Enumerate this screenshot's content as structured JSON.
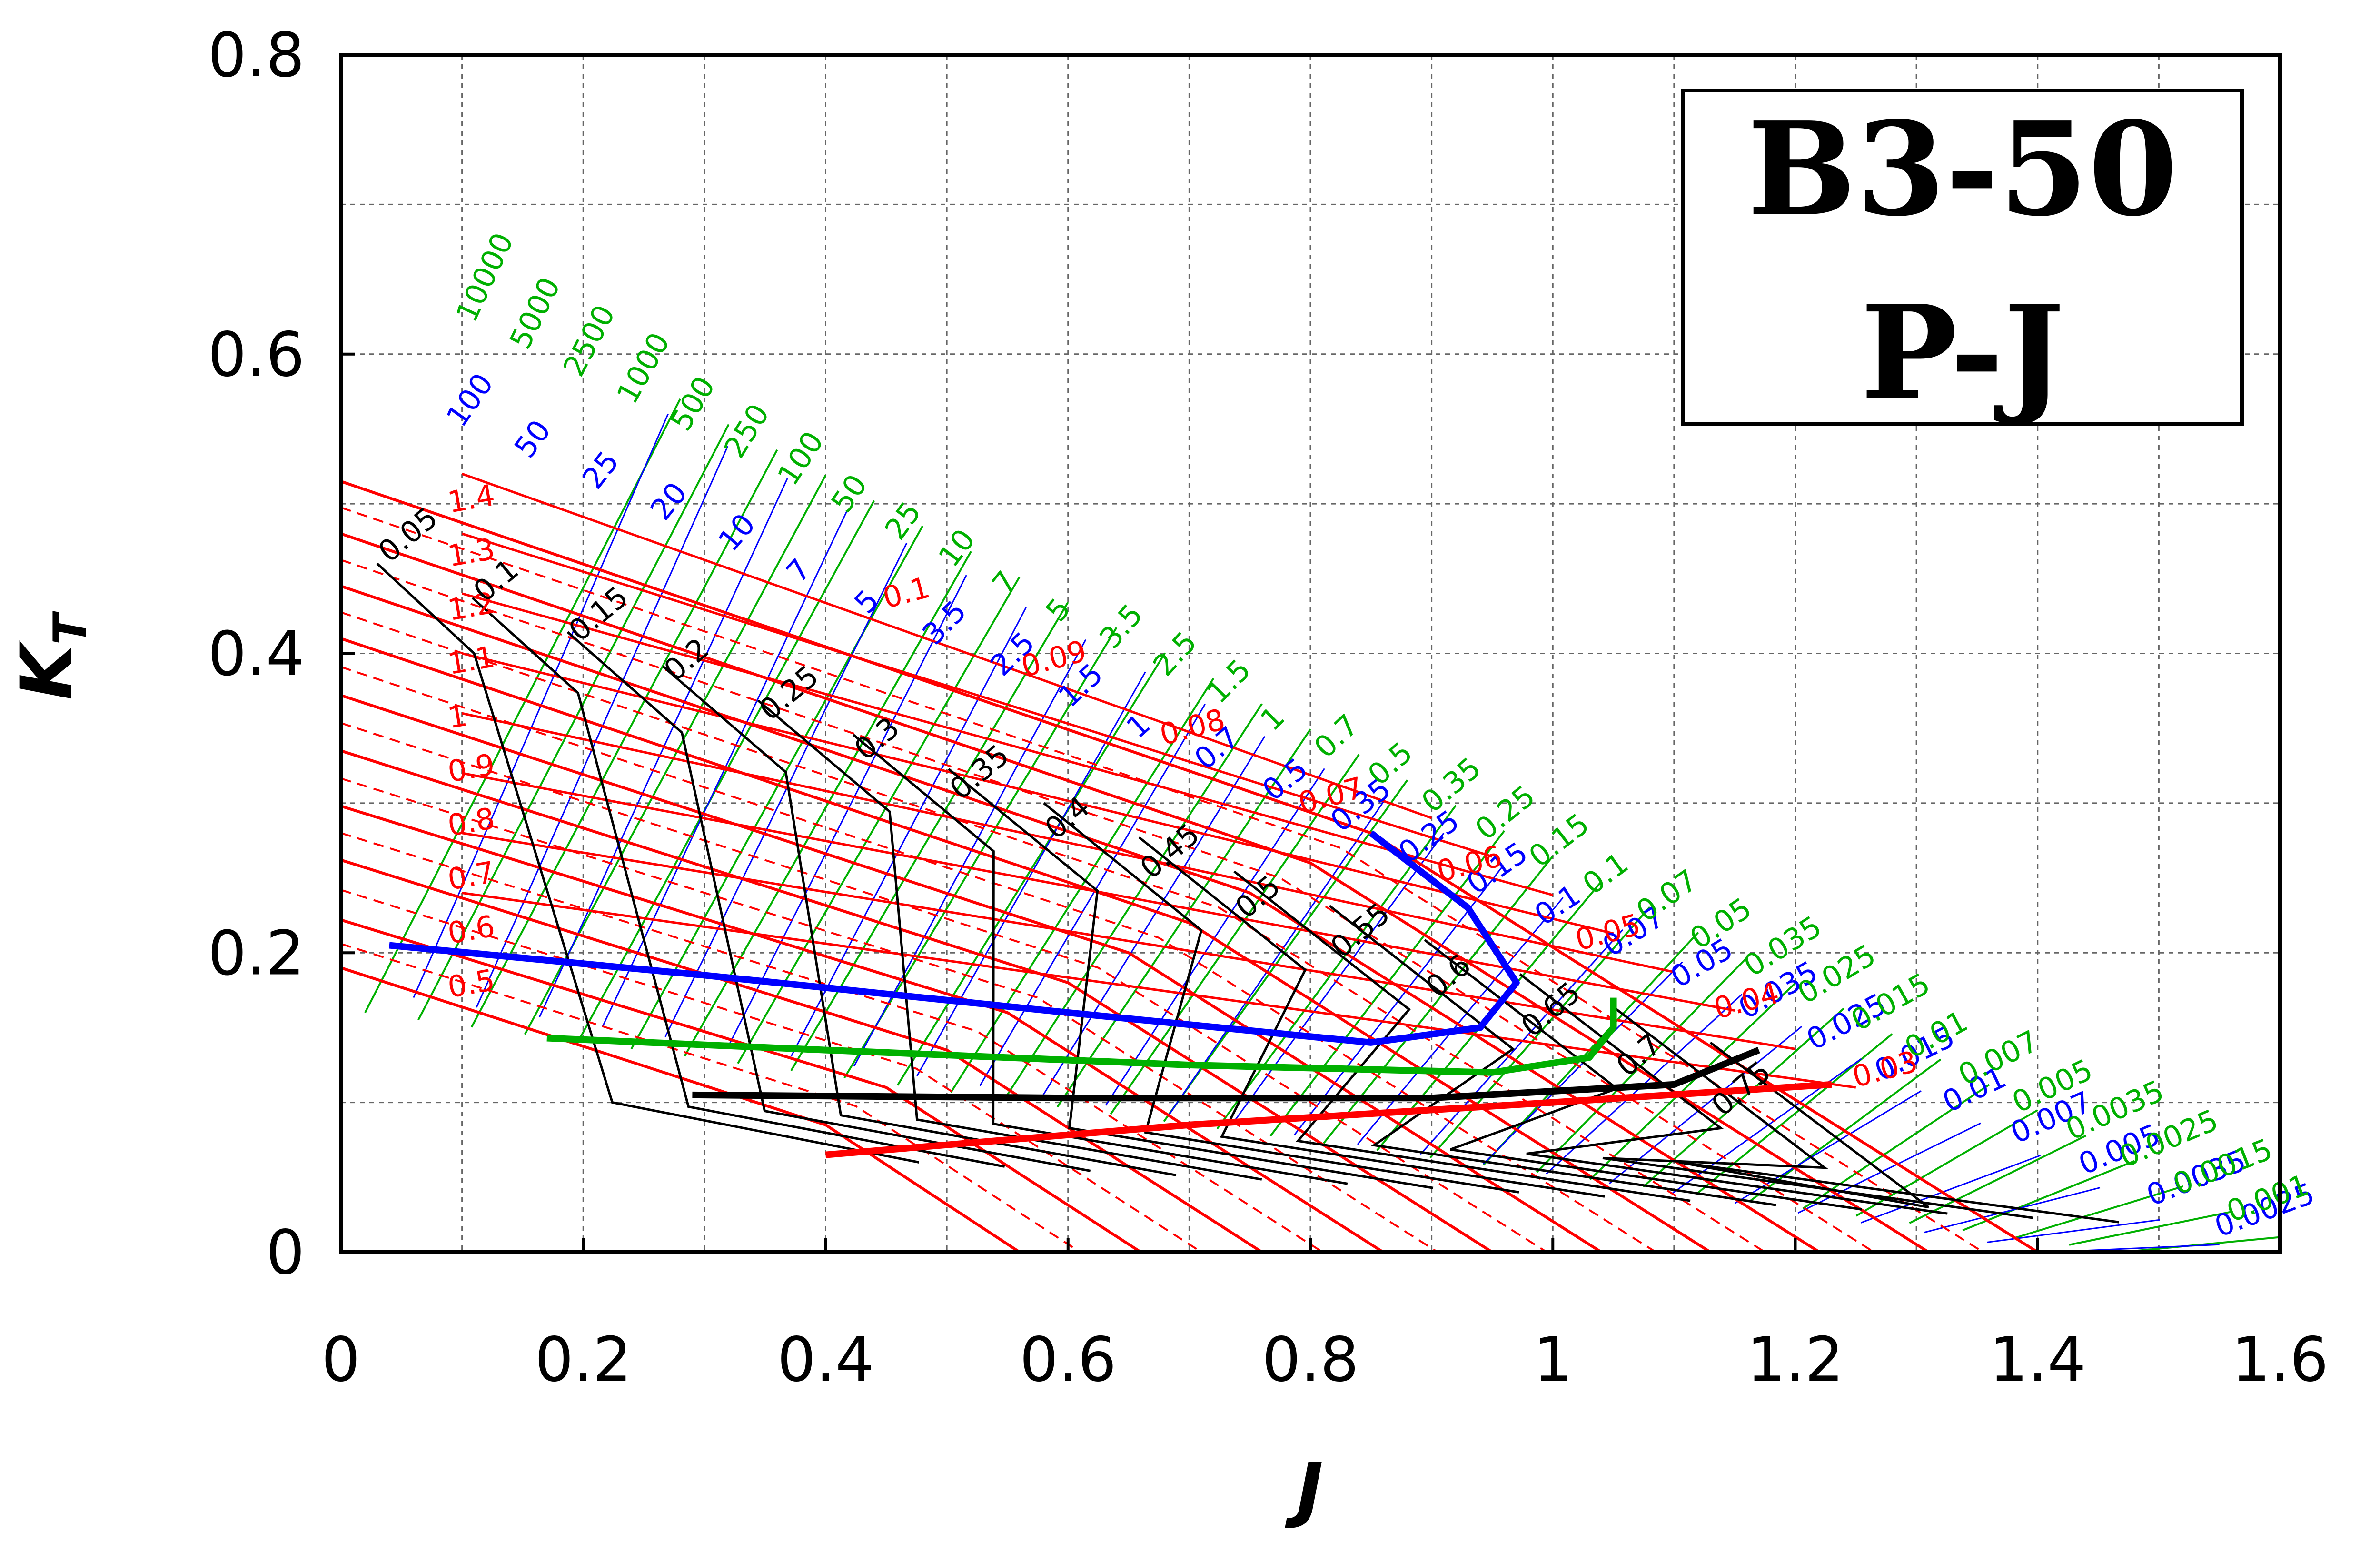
{
  "chart_data": {
    "type": "line",
    "title": "B3-50",
    "subtitle": "P-J",
    "xlabel": "J",
    "ylabel": "K_T",
    "xlim": [
      0,
      1.6
    ],
    "ylim": [
      0,
      0.8
    ],
    "grid": true,
    "x_ticks": [
      "0",
      "0.2",
      "0.4",
      "0.6",
      "0.8",
      "1",
      "1.2",
      "1.4",
      "1.6"
    ],
    "y_ticks": [
      "0",
      "0.2",
      "0.4",
      "0.6",
      "0.8"
    ],
    "colors": {
      "pitch_ratio": "#ff0000",
      "efficiency": "#000000",
      "coefficient_blue": "#0000ff",
      "coefficient_green": "#00b000",
      "grid": "#555555"
    },
    "pitch_ratio_labels": [
      "0.5",
      "0.6",
      "0.7",
      "0.8",
      "0.9",
      "1",
      "1.1",
      "1.2",
      "1.3",
      "1.4"
    ],
    "efficiency_labels": [
      "0.05",
      "0.1",
      "0.15",
      "0.2",
      "0.25",
      "0.3",
      "0.35",
      "0.4",
      "0.45",
      "0.5",
      "0.55",
      "0.6",
      "0.65",
      "0.7",
      "0.75"
    ],
    "blue_labels": [
      "100",
      "50",
      "25",
      "20",
      "10",
      "7",
      "5",
      "3.5",
      "2.5",
      "1.5",
      "1",
      "0.7",
      "0.5",
      "0.35",
      "0.25",
      "0.15",
      "0.1",
      "0.07",
      "0.05",
      "0.035",
      "0.025",
      "0.015",
      "0.01",
      "0.007",
      "0.005",
      "0.0035",
      "0.0025"
    ],
    "green_labels": [
      "10000",
      "5000",
      "2500",
      "1000",
      "500",
      "250",
      "100",
      "50",
      "25",
      "10",
      "7",
      "5",
      "3.5",
      "2.5",
      "1.5",
      "1",
      "0.7",
      "0.5",
      "0.35",
      "0.25",
      "0.15",
      "0.1",
      "0.07",
      "0.05",
      "0.035",
      "0.025",
      "0.015",
      "0.01",
      "0.007",
      "0.005",
      "0.0035",
      "0.0025",
      "0.0015",
      "0.001"
    ],
    "red_k_labels": [
      "0.1",
      "0.09",
      "0.08",
      "0.07",
      "0.06",
      "0.05",
      "0.04",
      "0.03"
    ],
    "kt_j_lines": {
      "P_D_0.5": [
        [
          0,
          0.19
        ],
        [
          0.4,
          0.085
        ],
        [
          0.56,
          0.0
        ]
      ],
      "P_D_0.6": [
        [
          0,
          0.222
        ],
        [
          0.45,
          0.11
        ],
        [
          0.66,
          0.0
        ]
      ],
      "P_D_0.7": [
        [
          0,
          0.262
        ],
        [
          0.5,
          0.135
        ],
        [
          0.76,
          0.0
        ]
      ],
      "P_D_0.8": [
        [
          0,
          0.298
        ],
        [
          0.55,
          0.16
        ],
        [
          0.86,
          0.0
        ]
      ],
      "P_D_0.9": [
        [
          0,
          0.335
        ],
        [
          0.6,
          0.18
        ],
        [
          0.95,
          0.0
        ]
      ],
      "P_D_1.0": [
        [
          0,
          0.372
        ],
        [
          0.65,
          0.2
        ],
        [
          1.04,
          0.0
        ]
      ],
      "P_D_1.1": [
        [
          0,
          0.41
        ],
        [
          0.7,
          0.22
        ],
        [
          1.13,
          0.0
        ]
      ],
      "P_D_1.2": [
        [
          0,
          0.445
        ],
        [
          0.75,
          0.24
        ],
        [
          1.22,
          0.0
        ]
      ],
      "P_D_1.3": [
        [
          0,
          0.48
        ],
        [
          0.8,
          0.26
        ],
        [
          1.31,
          0.0
        ]
      ],
      "P_D_1.4": [
        [
          0,
          0.515
        ],
        [
          0.85,
          0.28
        ],
        [
          1.4,
          0.0
        ]
      ]
    },
    "optimum_curves": [
      {
        "color": "#0000ff",
        "points": [
          [
            0.04,
            0.205
          ],
          [
            0.3,
            0.185
          ],
          [
            0.6,
            0.16
          ],
          [
            0.85,
            0.14
          ],
          [
            0.94,
            0.15
          ],
          [
            0.97,
            0.18
          ],
          [
            0.93,
            0.23
          ],
          [
            0.85,
            0.28
          ]
        ]
      },
      {
        "color": "#00b000",
        "points": [
          [
            0.17,
            0.143
          ],
          [
            0.4,
            0.135
          ],
          [
            0.7,
            0.125
          ],
          [
            0.95,
            0.12
          ],
          [
            1.03,
            0.13
          ],
          [
            1.05,
            0.15
          ],
          [
            1.05,
            0.17
          ]
        ]
      },
      {
        "color": "#000000",
        "points": [
          [
            0.29,
            0.105
          ],
          [
            0.6,
            0.103
          ],
          [
            0.9,
            0.103
          ],
          [
            1.1,
            0.112
          ],
          [
            1.17,
            0.135
          ]
        ]
      },
      {
        "color": "#ff0000",
        "points": [
          [
            0.4,
            0.065
          ],
          [
            0.7,
            0.085
          ],
          [
            1.0,
            0.1
          ],
          [
            1.23,
            0.112
          ]
        ]
      }
    ]
  }
}
